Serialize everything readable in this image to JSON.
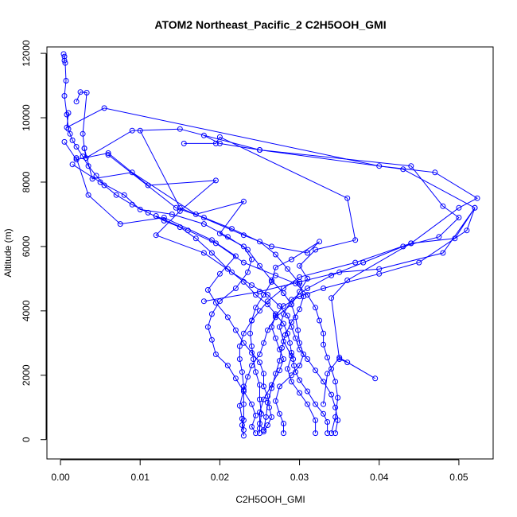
{
  "chart_data": {
    "type": "line",
    "title": "ATOM2 Northeast_Pacific_2 C2H5OOH_GMI",
    "xlabel": "C2H5OOH_GMI",
    "ylabel": "Altitude (m)",
    "xlim": [
      -0.0017,
      0.0543
    ],
    "ylim": [
      -600,
      12200
    ],
    "x_ticks": [
      "0.00",
      "0.01",
      "0.02",
      "0.03",
      "0.04",
      "0.05"
    ],
    "y_ticks": [
      "0",
      "2000",
      "4000",
      "6000",
      "8000",
      "10000",
      "12000"
    ],
    "grid": false,
    "marker": "open-circle",
    "line_color": "#0000ff",
    "series": [
      {
        "values": [
          [
            0.0004,
            11980
          ],
          [
            0.0005,
            11900
          ],
          [
            0.0005,
            11780
          ],
          [
            0.0006,
            11700
          ],
          [
            0.0007,
            11150
          ],
          [
            0.0005,
            10680
          ],
          [
            0.0008,
            10100
          ],
          [
            0.001,
            9650
          ],
          [
            0.0012,
            9500
          ],
          [
            0.0015,
            9300
          ],
          [
            0.002,
            9100
          ],
          [
            0.0028,
            8800
          ],
          [
            0.0035,
            8500
          ],
          [
            0.0045,
            8200
          ],
          [
            0.0055,
            7900
          ],
          [
            0.007,
            7600
          ],
          [
            0.009,
            7300
          ],
          [
            0.011,
            7050
          ],
          [
            0.013,
            6800
          ],
          [
            0.015,
            6600
          ],
          [
            0.017,
            6250
          ],
          [
            0.019,
            5800
          ],
          [
            0.021,
            5300
          ],
          [
            0.023,
            4900
          ],
          [
            0.0245,
            4500
          ],
          [
            0.026,
            4200
          ],
          [
            0.027,
            3900
          ],
          [
            0.028,
            3600
          ],
          [
            0.0285,
            3300
          ],
          [
            0.0288,
            3000
          ],
          [
            0.029,
            2700
          ],
          [
            0.0292,
            2500
          ],
          [
            0.0293,
            2300
          ],
          [
            0.0295,
            2100
          ],
          [
            0.03,
            1850
          ],
          [
            0.031,
            1500
          ],
          [
            0.032,
            1100
          ],
          [
            0.033,
            800
          ],
          [
            0.0335,
            550
          ],
          [
            0.0335,
            200
          ]
        ]
      },
      {
        "values": [
          [
            0.001,
            10150
          ],
          [
            0.0008,
            9700
          ],
          [
            0.0055,
            10300
          ],
          [
            0.04,
            8500
          ],
          [
            0.047,
            8300
          ],
          [
            0.0523,
            7500
          ],
          [
            0.05,
            7200
          ],
          [
            0.044,
            6100
          ],
          [
            0.037,
            5500
          ],
          [
            0.03,
            5050
          ],
          [
            0.028,
            4700
          ],
          [
            0.026,
            4300
          ],
          [
            0.025,
            4000
          ],
          [
            0.024,
            3700
          ],
          [
            0.023,
            3300
          ],
          [
            0.0225,
            2900
          ],
          [
            0.0225,
            2500
          ],
          [
            0.0228,
            2100
          ],
          [
            0.023,
            1650
          ],
          [
            0.023,
            1100
          ],
          [
            0.023,
            600
          ],
          [
            0.0228,
            450
          ],
          [
            0.023,
            120
          ]
        ]
      },
      {
        "values": [
          [
            0.002,
            10500
          ],
          [
            0.0025,
            10800
          ],
          [
            0.0033,
            10780
          ],
          [
            0.0028,
            9500
          ],
          [
            0.003,
            9050
          ],
          [
            0.0032,
            8750
          ],
          [
            0.009,
            9600
          ],
          [
            0.015,
            9650
          ],
          [
            0.025,
            9000
          ],
          [
            0.043,
            8400
          ],
          [
            0.052,
            7200
          ],
          [
            0.051,
            6500
          ],
          [
            0.045,
            5500
          ],
          [
            0.04,
            5150
          ],
          [
            0.033,
            4700
          ],
          [
            0.03,
            4450
          ],
          [
            0.028,
            4150
          ],
          [
            0.027,
            3850
          ],
          [
            0.0265,
            3500
          ],
          [
            0.027,
            3150
          ],
          [
            0.0275,
            2800
          ],
          [
            0.028,
            2500
          ],
          [
            0.0275,
            2150
          ],
          [
            0.0265,
            1700
          ],
          [
            0.0255,
            1250
          ],
          [
            0.025,
            850
          ],
          [
            0.025,
            500
          ],
          [
            0.025,
            200
          ]
        ]
      },
      {
        "values": [
          [
            0.0005,
            9250
          ],
          [
            0.002,
            8700
          ],
          [
            0.006,
            8900
          ],
          [
            0.011,
            7900
          ],
          [
            0.0195,
            8050
          ],
          [
            0.015,
            7100
          ],
          [
            0.012,
            6350
          ],
          [
            0.018,
            5800
          ],
          [
            0.0215,
            5200
          ],
          [
            0.024,
            4800
          ],
          [
            0.026,
            4500
          ],
          [
            0.0275,
            4150
          ],
          [
            0.0285,
            3850
          ],
          [
            0.029,
            3500
          ],
          [
            0.0295,
            3150
          ],
          [
            0.03,
            2800
          ],
          [
            0.031,
            2500
          ],
          [
            0.032,
            2150
          ],
          [
            0.033,
            1800
          ],
          [
            0.034,
            1400
          ],
          [
            0.0345,
            1000
          ],
          [
            0.0348,
            600
          ],
          [
            0.0345,
            200
          ]
        ]
      },
      {
        "values": [
          [
            0.003,
            9050
          ],
          [
            0.004,
            8100
          ],
          [
            0.009,
            8300
          ],
          [
            0.017,
            7000
          ],
          [
            0.023,
            7400
          ],
          [
            0.02,
            6400
          ],
          [
            0.023,
            6000
          ],
          [
            0.024,
            5600
          ],
          [
            0.0235,
            5200
          ],
          [
            0.022,
            4700
          ],
          [
            0.02,
            4300
          ],
          [
            0.019,
            3900
          ],
          [
            0.0185,
            3500
          ],
          [
            0.019,
            3100
          ],
          [
            0.0195,
            2650
          ],
          [
            0.021,
            2300
          ],
          [
            0.022,
            1900
          ],
          [
            0.023,
            1500
          ],
          [
            0.024,
            1100
          ],
          [
            0.0245,
            750
          ],
          [
            0.024,
            400
          ],
          [
            0.0245,
            200
          ]
        ]
      },
      {
        "values": [
          [
            0.0015,
            8550
          ],
          [
            0.005,
            8000
          ],
          [
            0.008,
            7600
          ],
          [
            0.01,
            7150
          ],
          [
            0.014,
            7000
          ],
          [
            0.018,
            6700
          ],
          [
            0.021,
            6300
          ],
          [
            0.0235,
            5900
          ],
          [
            0.025,
            5400
          ],
          [
            0.0265,
            4950
          ],
          [
            0.028,
            4550
          ],
          [
            0.029,
            4200
          ],
          [
            0.0295,
            3800
          ],
          [
            0.0298,
            3400
          ],
          [
            0.03,
            3000
          ],
          [
            0.0305,
            2650
          ],
          [
            0.03,
            2300
          ],
          [
            0.029,
            2000
          ],
          [
            0.0275,
            1650
          ],
          [
            0.027,
            1200
          ],
          [
            0.0275,
            800
          ],
          [
            0.028,
            500
          ],
          [
            0.028,
            200
          ]
        ]
      },
      {
        "values": [
          [
            0.002,
            8750
          ],
          [
            0.0035,
            7600
          ],
          [
            0.0075,
            6700
          ],
          [
            0.013,
            6900
          ],
          [
            0.019,
            6200
          ],
          [
            0.022,
            5700
          ],
          [
            0.02,
            5150
          ],
          [
            0.0185,
            4650
          ],
          [
            0.0195,
            4250
          ],
          [
            0.021,
            3800
          ],
          [
            0.022,
            3400
          ],
          [
            0.023,
            3000
          ],
          [
            0.024,
            2700
          ],
          [
            0.025,
            2400
          ],
          [
            0.0255,
            2050
          ],
          [
            0.0255,
            1650
          ],
          [
            0.026,
            1350
          ],
          [
            0.0262,
            1000
          ],
          [
            0.0265,
            700
          ],
          [
            0.026,
            450
          ],
          [
            0.0255,
            250
          ]
        ]
      },
      {
        "values": [
          [
            0.012,
            6950
          ],
          [
            0.016,
            6500
          ],
          [
            0.0195,
            6100
          ],
          [
            0.023,
            5500
          ],
          [
            0.027,
            5100
          ],
          [
            0.0295,
            4850
          ],
          [
            0.031,
            4500
          ],
          [
            0.032,
            4100
          ],
          [
            0.0325,
            3700
          ],
          [
            0.033,
            3300
          ],
          [
            0.033,
            2950
          ],
          [
            0.0335,
            2550
          ],
          [
            0.034,
            2200
          ],
          [
            0.0345,
            1800
          ],
          [
            0.0348,
            1300
          ],
          [
            0.0345,
            700
          ],
          [
            0.034,
            200
          ]
        ]
      },
      {
        "values": [
          [
            0.018,
            4300
          ],
          [
            0.025,
            4600
          ],
          [
            0.03,
            4900
          ],
          [
            0.035,
            5200
          ],
          [
            0.04,
            5300
          ],
          [
            0.048,
            5800
          ],
          [
            0.052,
            7200
          ],
          [
            0.0495,
            6250
          ],
          [
            0.044,
            6100
          ],
          [
            0.036,
            4950
          ],
          [
            0.034,
            4400
          ],
          [
            0.035,
            2500
          ],
          [
            0.036,
            2400
          ],
          [
            0.0395,
            1900
          ],
          [
            0.035,
            2550
          ],
          [
            0.0335,
            2050
          ],
          [
            0.033,
            1100
          ]
        ]
      },
      {
        "values": [
          [
            0.018,
            9450
          ],
          [
            0.02,
            9200
          ],
          [
            0.025,
            9000
          ],
          [
            0.044,
            8500
          ],
          [
            0.048,
            7250
          ],
          [
            0.05,
            6900
          ],
          [
            0.0475,
            6300
          ],
          [
            0.043,
            6000
          ],
          [
            0.038,
            5500
          ],
          [
            0.034,
            5100
          ],
          [
            0.031,
            4700
          ],
          [
            0.029,
            4350
          ],
          [
            0.028,
            3900
          ],
          [
            0.0275,
            3500
          ],
          [
            0.028,
            3050
          ],
          [
            0.029,
            2600
          ],
          [
            0.0285,
            2200
          ],
          [
            0.029,
            1800
          ],
          [
            0.03,
            1450
          ],
          [
            0.031,
            1100
          ],
          [
            0.032,
            600
          ],
          [
            0.032,
            200
          ]
        ]
      },
      {
        "values": [
          [
            0.0155,
            9200
          ],
          [
            0.0195,
            9200
          ],
          [
            0.02,
            9400
          ],
          [
            0.036,
            7500
          ],
          [
            0.037,
            6200
          ],
          [
            0.032,
            5900
          ],
          [
            0.03,
            5400
          ],
          [
            0.031,
            5000
          ],
          [
            0.03,
            4600
          ],
          [
            0.029,
            4200
          ],
          [
            0.027,
            3800
          ],
          [
            0.026,
            3400
          ],
          [
            0.0255,
            3000
          ],
          [
            0.025,
            2650
          ],
          [
            0.024,
            2300
          ],
          [
            0.0235,
            1950
          ],
          [
            0.023,
            1550
          ],
          [
            0.0225,
            1050
          ],
          [
            0.0228,
            650
          ],
          [
            0.023,
            300
          ]
        ]
      },
      {
        "values": [
          [
            0.006,
            8850
          ],
          [
            0.0145,
            7200
          ],
          [
            0.018,
            6900
          ],
          [
            0.0215,
            6550
          ],
          [
            0.025,
            6150
          ],
          [
            0.027,
            5750
          ],
          [
            0.0285,
            5300
          ],
          [
            0.03,
            4850
          ],
          [
            0.0305,
            4450
          ],
          [
            0.03,
            4050
          ],
          [
            0.029,
            3650
          ],
          [
            0.0282,
            3250
          ],
          [
            0.0278,
            2850
          ],
          [
            0.0275,
            2450
          ],
          [
            0.027,
            2050
          ],
          [
            0.0265,
            1600
          ],
          [
            0.026,
            1150
          ],
          [
            0.0258,
            700
          ],
          [
            0.0255,
            300
          ]
        ]
      },
      {
        "values": [
          [
            0.01,
            9600
          ],
          [
            0.015,
            7200
          ],
          [
            0.023,
            6350
          ],
          [
            0.0265,
            6000
          ],
          [
            0.031,
            5800
          ],
          [
            0.0325,
            6150
          ],
          [
            0.029,
            5600
          ],
          [
            0.027,
            5350
          ],
          [
            0.0265,
            4900
          ],
          [
            0.0255,
            4500
          ],
          [
            0.0245,
            4100
          ],
          [
            0.024,
            3700
          ],
          [
            0.0238,
            3300
          ],
          [
            0.024,
            2900
          ],
          [
            0.0242,
            2500
          ],
          [
            0.0245,
            2100
          ],
          [
            0.025,
            1700
          ],
          [
            0.025,
            1250
          ],
          [
            0.0252,
            800
          ],
          [
            0.025,
            350
          ]
        ]
      }
    ]
  }
}
